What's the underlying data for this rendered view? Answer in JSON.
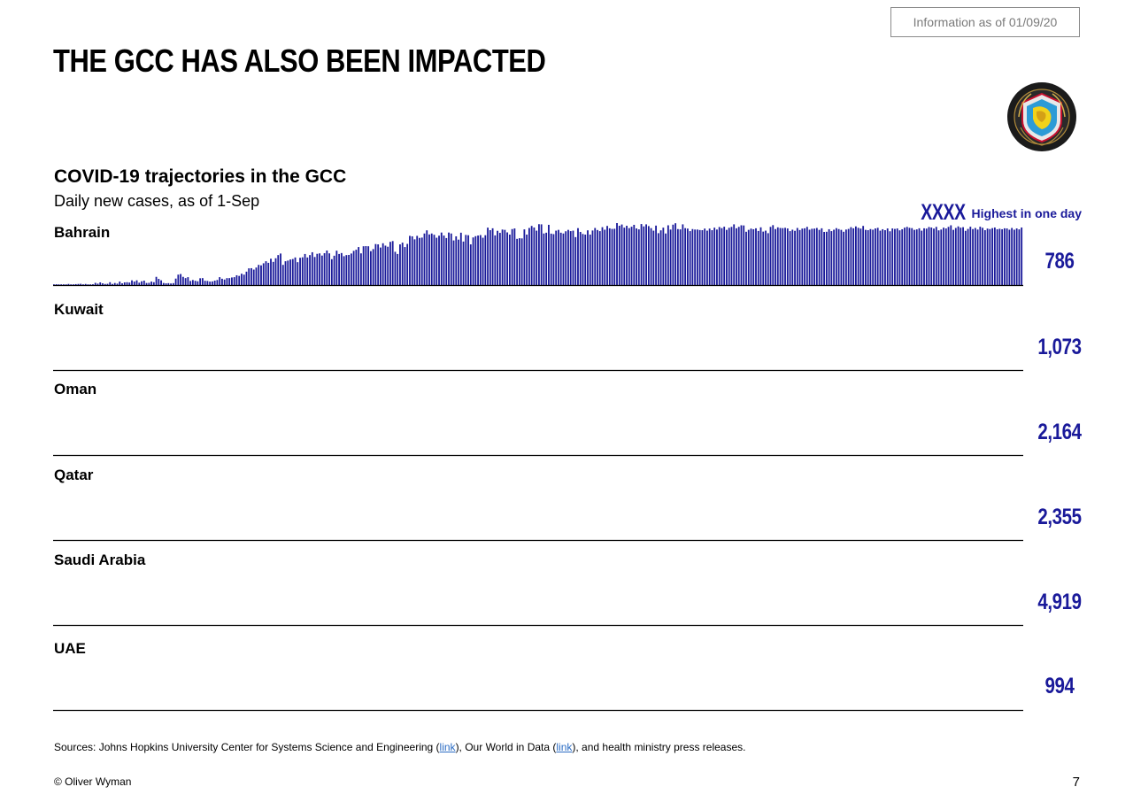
{
  "header": {
    "info_label": "Information as of 01/09/20",
    "title": "THE GCC HAS ALSO BEEN IMPACTED"
  },
  "chart_title": "COVID-19 trajectories in the GCC",
  "chart_subtitle": "Daily new cases, as of 1-Sep",
  "legend": {
    "sample": "XXXX",
    "label": "Highest in one day"
  },
  "colors": {
    "bar": "#1a1a9a",
    "axis": "#000000",
    "text": "#000000",
    "accent": "#1a1a9a"
  },
  "chart_data": [
    {
      "type": "bar",
      "country": "Bahrain",
      "max_label": "786",
      "max": 786,
      "values": [
        8,
        10,
        4,
        4,
        6,
        6,
        14,
        6,
        8,
        12,
        14,
        16,
        6,
        14,
        8,
        8,
        10,
        28,
        18,
        34,
        22,
        14,
        16,
        36,
        14,
        26,
        18,
        44,
        22,
        34,
        36,
        32,
        60,
        44,
        60,
        30,
        48,
        56,
        26,
        28,
        44,
        36,
        104,
        78,
        60,
        26,
        22,
        24,
        20,
        24,
        82,
        132,
        140,
        104,
        88,
        100,
        52,
        64,
        54,
        48,
        86,
        88,
        54,
        52,
        44,
        46,
        56,
        64,
        100,
        80,
        70,
        88,
        88,
        96,
        100,
        124,
        116,
        144,
        132,
        170,
        212,
        214,
        196,
        222,
        256,
        250,
        276,
        302,
        282,
        334,
        294,
        340,
        380,
        400,
        256,
        302,
        310,
        324,
        330,
        350,
        290,
        346,
        352,
        394,
        350,
        380,
        416,
        356,
        396,
        402,
        374,
        404,
        438,
        402,
        328,
        372,
        436,
        394,
        406,
        366,
        380,
        382,
        400,
        434,
        448,
        482,
        402,
        492,
        494,
        492,
        430,
        456,
        520,
        516,
        476,
        530,
        500,
        486,
        548,
        558,
        422,
        394,
        516,
        538,
        482,
        522,
        624,
        618,
        580,
        624,
        598,
        602,
        654,
        694,
        642,
        654,
        638,
        600,
        626,
        666,
        628,
        596,
        666,
        654,
        566,
        618,
        576,
        664,
        552,
        636,
        632,
        516,
        604,
        620,
        628,
        634,
        600,
        632,
        728,
        696,
        720,
        630,
        688,
        662,
        704,
        700,
        668,
        640,
        710,
        718,
        586,
        594,
        592,
        706,
        640,
        724,
        750,
        730,
        690,
        772,
        770,
        654,
        664,
        764,
        652,
        646,
        690,
        700,
        664,
        654,
        682,
        700,
        684,
        690,
        608,
        722,
        674,
        648,
        640,
        694,
        640,
        692,
        724,
        698,
        684,
        734,
        702,
        750,
        720,
        712,
        714,
        786,
        752,
        768,
        728,
        752,
        722,
        740,
        764,
        718,
        706,
        774,
        744,
        770,
        748,
        722,
        690,
        754,
        658,
        694,
        728,
        654,
        758,
        704,
        766,
        784,
        710,
        706,
        770,
        722,
        716,
        684,
        710,
        704,
        704,
        698,
        696,
        716,
        690,
        716,
        696,
        728,
        704,
        736,
        722,
        740,
        700,
        726,
        738,
        770,
        720,
        738,
        758,
        756,
        676,
        700,
        716,
        708,
        720,
        686,
        732,
        678,
        690,
        658,
        738,
        760,
        710,
        732,
        724,
        722,
        726,
        718,
        684,
        702,
        688,
        724,
        698,
        716,
        720,
        738,
        702,
        714,
        716,
        724,
        700,
        720,
        674,
        676,
        708,
        684,
        702,
        722,
        710,
        700,
        676,
        704,
        712,
        734,
        720,
        744,
        726,
        716,
        750,
        700,
        696,
        710,
        702,
        718,
        726,
        690,
        708,
        696,
        718,
        682,
        718,
        712,
        718,
        694,
        708,
        728,
        738,
        726,
        722,
        700,
        706,
        720,
        690,
        720,
        716,
        736,
        730,
        716,
        738,
        694,
        704,
        728,
        718,
        738,
        758,
        700,
        724,
        744,
        728,
        734,
        688,
        712,
        740,
        710,
        724,
        704,
        740,
        726,
        696,
        716,
        710,
        722,
        730,
        708,
        714,
        708,
        720,
        718,
        702,
        724,
        702,
        718,
        706,
        730
      ]
    },
    {
      "type": "bar",
      "country": "Kuwait",
      "max_label": "1,073",
      "max": 1073,
      "values": []
    },
    {
      "type": "bar",
      "country": "Oman",
      "max_label": "2,164",
      "max": 2164,
      "values": []
    },
    {
      "type": "bar",
      "country": "Qatar",
      "max_label": "2,355",
      "max": 2355,
      "values": []
    },
    {
      "type": "bar",
      "country": "Saudi Arabia",
      "max_label": "4,919",
      "max": 4919,
      "values": []
    },
    {
      "type": "bar",
      "country": "UAE",
      "max_label": "994",
      "max": 994,
      "values": []
    }
  ],
  "footer": {
    "sources_pre": "Sources: Johns Hopkins University Center for Systems Science and Engineering (",
    "link1": "link",
    "sources_mid": "), Our World in Data (",
    "link2": "link",
    "sources_post": "), and health ministry press releases.",
    "copyright": "© Oliver Wyman",
    "page_number": "7"
  }
}
